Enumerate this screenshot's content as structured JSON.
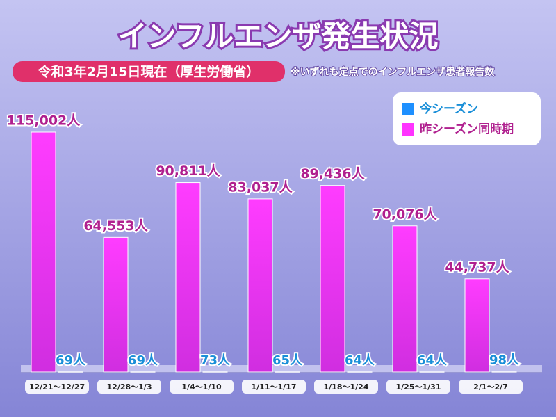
{
  "chart_data": {
    "type": "bar",
    "title": "インフルエンザ発生状況",
    "subtitle": "令和3年2月15日現在（厚生労働省）",
    "note": "※いずれも定点でのインフルエンザ患者報告数",
    "categories": [
      "12/21～12/27",
      "12/28～1/3",
      "1/4～1/10",
      "1/11～1/17",
      "1/18～1/24",
      "1/25～1/31",
      "2/1～2/7"
    ],
    "series": [
      {
        "name": "今シーズン",
        "color": "#1e90ff",
        "values": [
          69,
          69,
          73,
          65,
          64,
          64,
          98
        ],
        "value_labels": [
          "69人",
          "69人",
          "73人",
          "65人",
          "64人",
          "64人",
          "98人"
        ]
      },
      {
        "name": "昨シーズン同時期",
        "color": "#ff33ff",
        "values": [
          115002,
          64553,
          90811,
          83037,
          89436,
          70076,
          44737
        ],
        "value_labels": [
          "115,002人",
          "64,553人",
          "90,811人",
          "83,037人",
          "89,436人",
          "70,076人",
          "44,737人"
        ]
      }
    ],
    "ylim": [
      0,
      130000
    ]
  }
}
